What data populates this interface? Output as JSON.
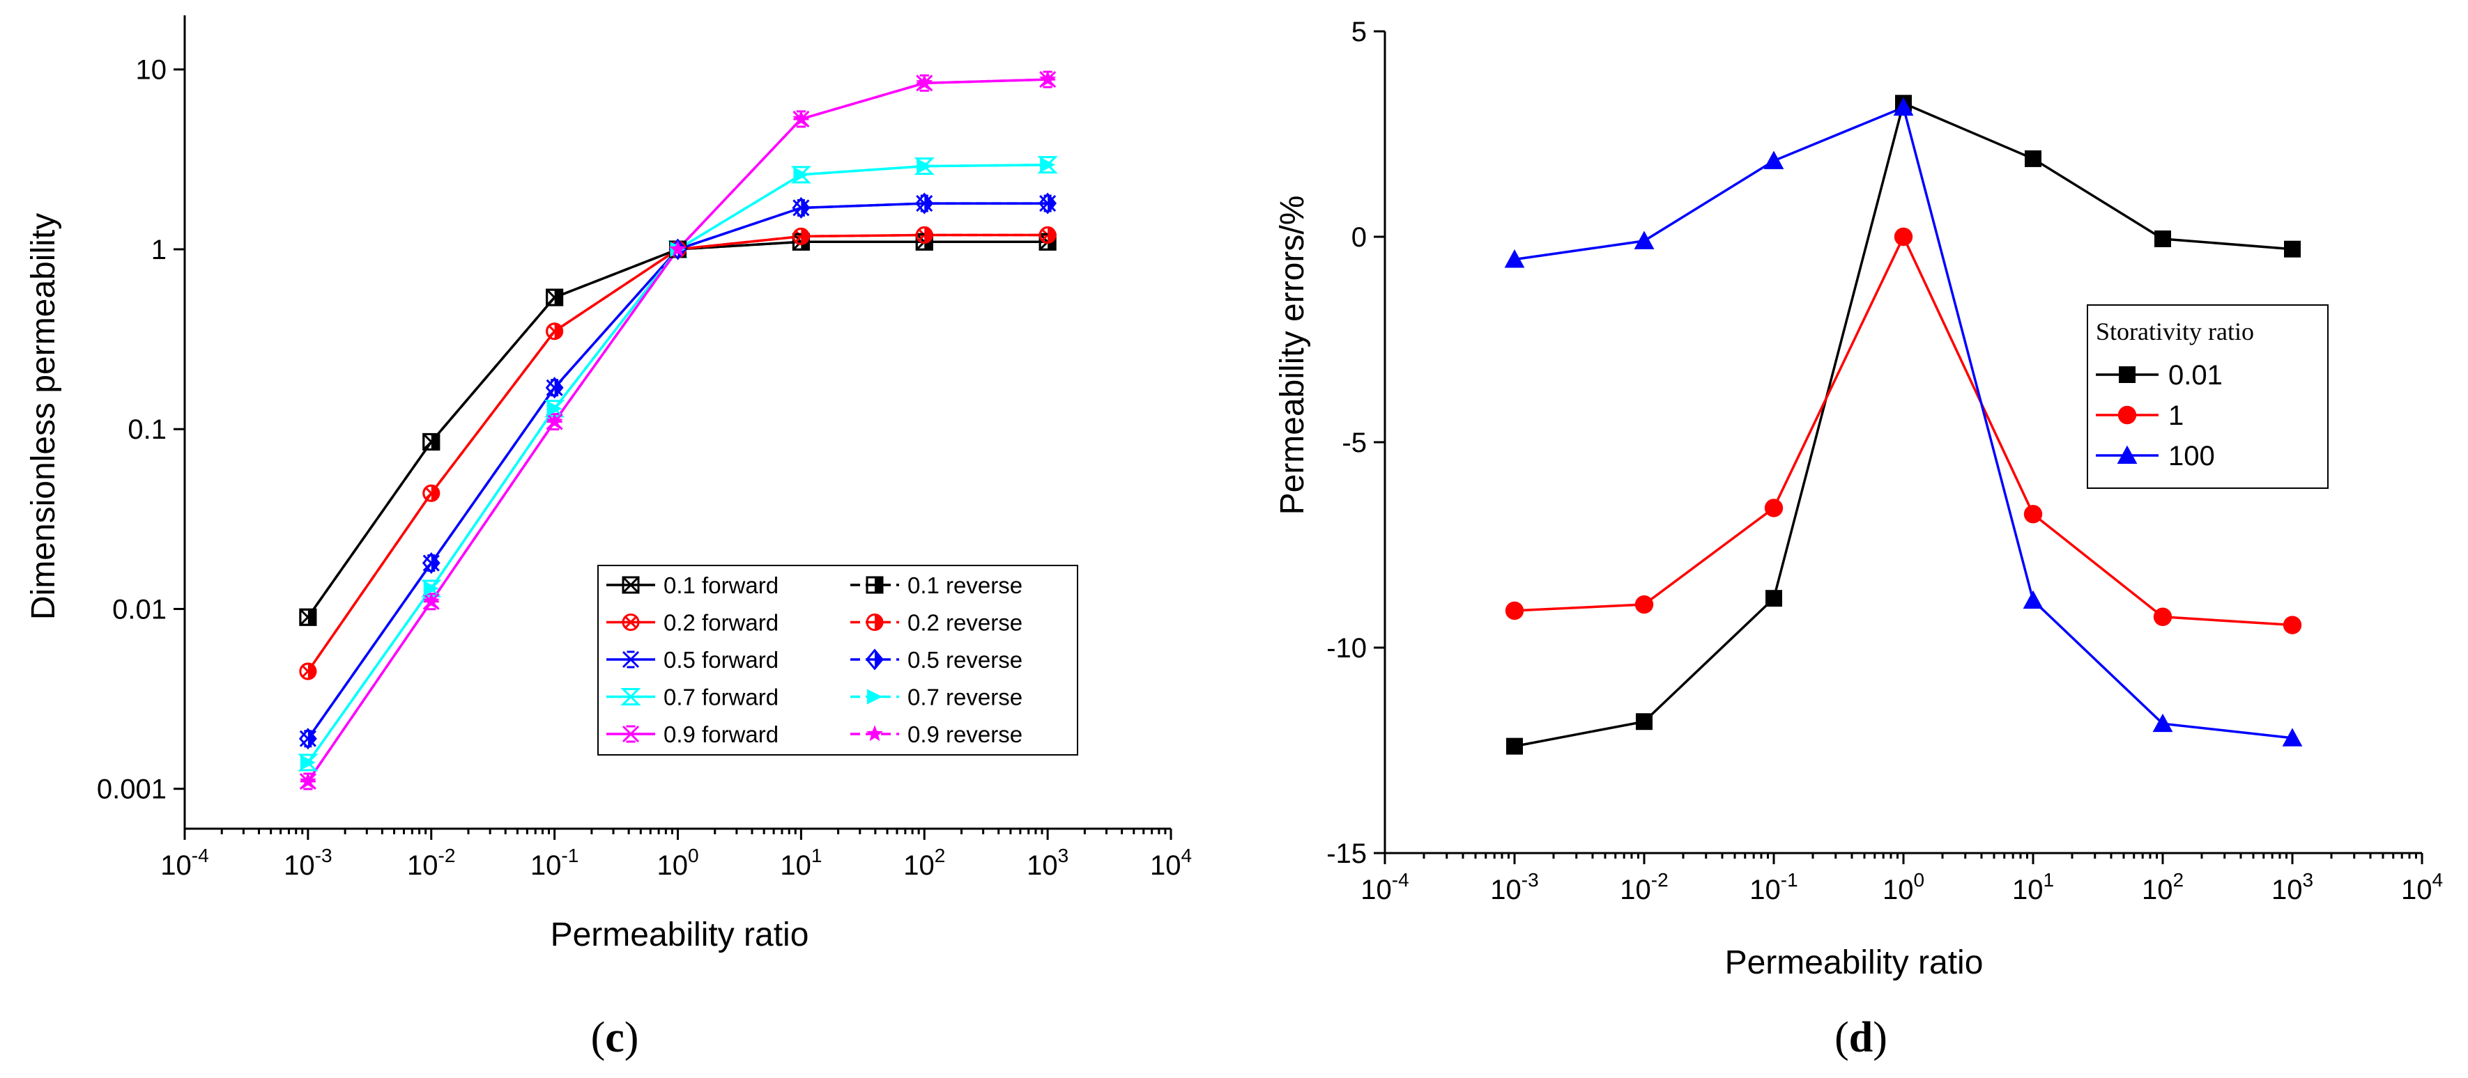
{
  "chart_data": [
    {
      "id": "c",
      "type": "line",
      "panel_label": "c",
      "xlabel": "Permeability ratio",
      "ylabel": "Dimensionless permeability",
      "xscale": "log",
      "yscale": "log",
      "xlim": [
        0.0001,
        10000
      ],
      "ylim": [
        0.0006,
        20
      ],
      "x_tick_labels": [
        {
          "base": "10",
          "exp": "-4"
        },
        {
          "base": "10",
          "exp": "-3"
        },
        {
          "base": "10",
          "exp": "-2"
        },
        {
          "base": "10",
          "exp": "-1"
        },
        {
          "base": "10",
          "exp": "0"
        },
        {
          "base": "10",
          "exp": "1"
        },
        {
          "base": "10",
          "exp": "2"
        },
        {
          "base": "10",
          "exp": "3"
        },
        {
          "base": "10",
          "exp": "4"
        }
      ],
      "y_ticks": [
        0.001,
        0.01,
        0.1,
        1,
        10
      ],
      "y_tick_labels": [
        "0.001",
        "0.01",
        "0.1",
        "1",
        "10"
      ],
      "x": [
        0.001,
        0.01,
        0.1,
        1,
        10,
        100,
        1000
      ],
      "legend_position": "center-right",
      "series": [
        {
          "name": "0.1 forward",
          "color": "#000000",
          "marker": "square-x",
          "values": [
            0.009,
            0.085,
            0.54,
            1.0,
            1.1,
            1.1,
            1.1
          ]
        },
        {
          "name": "0.2 forward",
          "color": "#ff0000",
          "marker": "circle-x",
          "values": [
            0.0045,
            0.044,
            0.35,
            1.0,
            1.18,
            1.2,
            1.2
          ]
        },
        {
          "name": "0.5 forward",
          "color": "#0000ff",
          "marker": "double-x",
          "values": [
            0.0019,
            0.018,
            0.17,
            1.0,
            1.7,
            1.8,
            1.8
          ]
        },
        {
          "name": "0.7 forward",
          "color": "#00ffff",
          "marker": "hourglass",
          "values": [
            0.0014,
            0.013,
            0.13,
            1.0,
            2.6,
            2.9,
            2.95
          ]
        },
        {
          "name": "0.9 forward",
          "color": "#ff00ff",
          "marker": "star-x",
          "values": [
            0.0011,
            0.011,
            0.11,
            1.0,
            5.3,
            8.4,
            8.8
          ]
        },
        {
          "name": "0.1 reverse",
          "color": "#000000",
          "marker": "half-square",
          "values": [
            0.009,
            0.085,
            0.54,
            1.0,
            1.1,
            1.1,
            1.1
          ]
        },
        {
          "name": "0.2 reverse",
          "color": "#ff0000",
          "marker": "half-circle",
          "values": [
            0.0045,
            0.044,
            0.35,
            1.0,
            1.18,
            1.2,
            1.2
          ]
        },
        {
          "name": "0.5 reverse",
          "color": "#0000ff",
          "marker": "half-diamond",
          "values": [
            0.0019,
            0.018,
            0.17,
            1.0,
            1.7,
            1.8,
            1.8
          ]
        },
        {
          "name": "0.7 reverse",
          "color": "#00ffff",
          "marker": "triangle-right",
          "values": [
            0.0014,
            0.013,
            0.13,
            1.0,
            2.6,
            2.9,
            2.95
          ]
        },
        {
          "name": "0.9 reverse",
          "color": "#ff00ff",
          "marker": "star",
          "values": [
            0.0011,
            0.011,
            0.11,
            1.0,
            5.3,
            8.4,
            8.8
          ]
        }
      ]
    },
    {
      "id": "d",
      "type": "line",
      "panel_label": "d",
      "xlabel": "Permeability ratio",
      "ylabel": "Permeability errors/%",
      "xscale": "log",
      "yscale": "linear",
      "xlim": [
        0.0001,
        10000
      ],
      "ylim": [
        -15,
        5
      ],
      "x_tick_labels": [
        {
          "base": "10",
          "exp": "-4"
        },
        {
          "base": "10",
          "exp": "-3"
        },
        {
          "base": "10",
          "exp": "-2"
        },
        {
          "base": "10",
          "exp": "-1"
        },
        {
          "base": "10",
          "exp": "0"
        },
        {
          "base": "10",
          "exp": "1"
        },
        {
          "base": "10",
          "exp": "2"
        },
        {
          "base": "10",
          "exp": "3"
        },
        {
          "base": "10",
          "exp": "4"
        }
      ],
      "y_ticks": [
        5,
        0,
        -5,
        -10,
        -15
      ],
      "y_tick_labels": [
        "5",
        "0",
        "-5",
        "-10",
        "-15"
      ],
      "x": [
        0.001,
        0.01,
        0.1,
        1,
        10,
        100,
        1000
      ],
      "legend_title": "Storativity ratio",
      "legend_position": "center-right",
      "series": [
        {
          "name": "0.01",
          "color": "#000000",
          "marker": "square",
          "values": [
            -12.4,
            -11.8,
            -8.8,
            3.25,
            1.9,
            -0.05,
            -0.3
          ]
        },
        {
          "name": "1",
          "color": "#ff0000",
          "marker": "circle",
          "values": [
            -9.1,
            -8.95,
            -6.6,
            0.0,
            -6.75,
            -9.25,
            -9.45
          ]
        },
        {
          "name": "100",
          "color": "#0000ff",
          "marker": "triangle",
          "values": [
            -0.55,
            -0.1,
            1.85,
            3.15,
            -8.85,
            -11.85,
            -12.2
          ]
        }
      ]
    }
  ]
}
